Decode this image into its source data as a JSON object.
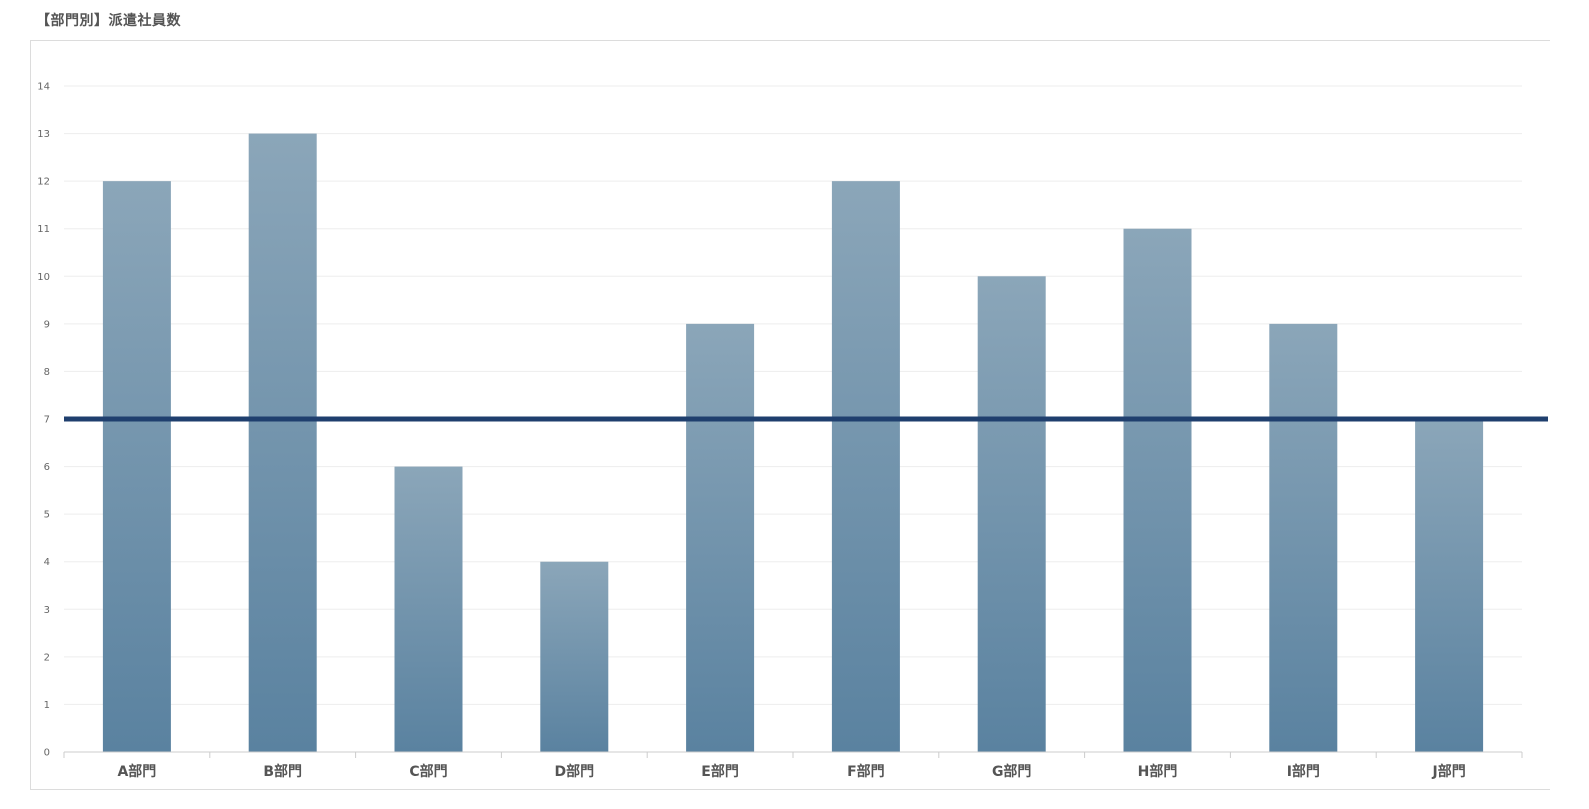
{
  "chart_data": {
    "type": "bar",
    "title": "【部門別】派遣社員数",
    "xlabel": "",
    "ylabel": "",
    "categories": [
      "A部門",
      "B部門",
      "C部門",
      "D部門",
      "E部門",
      "F部門",
      "G部門",
      "H部門",
      "I部門",
      "J部門"
    ],
    "series": [
      {
        "values": [
          12,
          13,
          6,
          4,
          9,
          12,
          10,
          11,
          9,
          7
        ]
      }
    ],
    "reference_line": {
      "value": 7
    },
    "ylim": [
      0,
      14
    ],
    "yticks": [
      0,
      1,
      2,
      3,
      4,
      5,
      6,
      7,
      8,
      9,
      10,
      11,
      12,
      13,
      14
    ],
    "grid": true,
    "legend": "none",
    "colors": {
      "bar_top": "#8ba6b9",
      "bar_bottom": "#5a82a0",
      "reference_line": "#1f3f6e",
      "grid": "#ededed",
      "axis": "#cccccc"
    }
  }
}
